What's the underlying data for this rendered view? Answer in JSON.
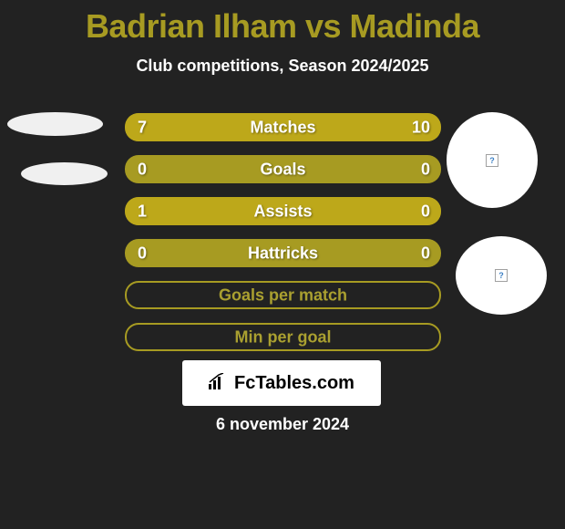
{
  "title": "Badrian Ilham vs Madinda",
  "subtitle": "Club competitions, Season 2024/2025",
  "date": "6 november 2024",
  "logo_text": "FcTables.com",
  "colors": {
    "background": "#222222",
    "accent": "#a79b22",
    "bar_fill": "#bda81a",
    "title_color": "#a79b22",
    "text_white": "#ffffff",
    "circle_bg": "#ffffff",
    "ellipse_bg": "#f0f0f0"
  },
  "bars": [
    {
      "label": "Matches",
      "left_value": "7",
      "right_value": "10",
      "left_fill_pct": 40,
      "right_fill_pct": 60,
      "style": "filled"
    },
    {
      "label": "Goals",
      "left_value": "0",
      "right_value": "0",
      "left_fill_pct": 0,
      "right_fill_pct": 0,
      "style": "filled"
    },
    {
      "label": "Assists",
      "left_value": "1",
      "right_value": "0",
      "left_fill_pct": 76,
      "right_fill_pct": 24,
      "style": "filled"
    },
    {
      "label": "Hattricks",
      "left_value": "0",
      "right_value": "0",
      "left_fill_pct": 0,
      "right_fill_pct": 0,
      "style": "filled"
    },
    {
      "label": "Goals per match",
      "left_value": "",
      "right_value": "",
      "left_fill_pct": 0,
      "right_fill_pct": 0,
      "style": "bordered"
    },
    {
      "label": "Min per goal",
      "left_value": "",
      "right_value": "",
      "left_fill_pct": 0,
      "right_fill_pct": 0,
      "style": "bordered"
    }
  ],
  "q_badge": "?"
}
